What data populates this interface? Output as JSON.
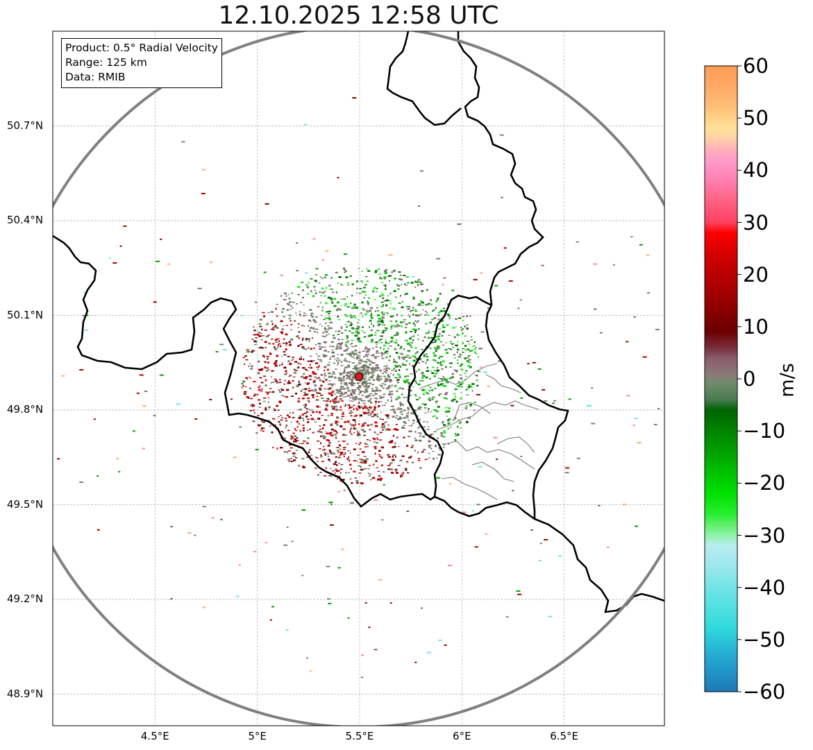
{
  "title": "12.10.2025 12:58 UTC",
  "info": {
    "product": "Product: 0.5° Radial Velocity",
    "range": "Range: 125 km",
    "data": "Data: RMIB"
  },
  "map": {
    "lon_range": [
      4.0,
      6.99
    ],
    "lat_range": [
      48.8,
      51.0
    ],
    "lat_ticks": [
      "50.7°N",
      "50.4°N",
      "50.1°N",
      "49.8°N",
      "49.5°N",
      "49.2°N",
      "48.9°N"
    ],
    "lat_values": [
      50.7,
      50.4,
      50.1,
      49.8,
      49.5,
      49.2,
      48.9
    ],
    "lon_ticks": [
      "4.5°E",
      "5°E",
      "5.5°E",
      "6°E",
      "6.5°E"
    ],
    "lon_values": [
      4.5,
      5.0,
      5.5,
      6.0,
      6.5
    ],
    "radar_site": {
      "lon": 5.505,
      "lat": 49.914,
      "range_km": 125,
      "marker_color": "#e8141a"
    }
  },
  "colorbar": {
    "unit": "m/s",
    "min": -60,
    "max": 60,
    "ticks": [
      "60",
      "50",
      "40",
      "30",
      "20",
      "10",
      "0",
      "−10",
      "−20",
      "−30",
      "−40",
      "−50",
      "−60"
    ],
    "tick_values": [
      60,
      50,
      40,
      30,
      20,
      10,
      0,
      -10,
      -20,
      -30,
      -40,
      -50,
      -60
    ],
    "stops": [
      {
        "v": -60,
        "c": "#1f78b4"
      },
      {
        "v": -56,
        "c": "#2196c8"
      },
      {
        "v": -52,
        "c": "#26b4d4"
      },
      {
        "v": -48,
        "c": "#2ed8dc"
      },
      {
        "v": -44,
        "c": "#50dfe0"
      },
      {
        "v": -40,
        "c": "#72e4e6"
      },
      {
        "v": -36,
        "c": "#9ae8ec"
      },
      {
        "v": -32,
        "c": "#b8ecf0"
      },
      {
        "v": -30,
        "c": "#8ff2a8"
      },
      {
        "v": -28,
        "c": "#60ef6a"
      },
      {
        "v": -26,
        "c": "#28ef30"
      },
      {
        "v": -22,
        "c": "#00e000"
      },
      {
        "v": -18,
        "c": "#00c200"
      },
      {
        "v": -14,
        "c": "#00a000"
      },
      {
        "v": -10,
        "c": "#008400"
      },
      {
        "v": -6,
        "c": "#006400"
      },
      {
        "v": -4,
        "c": "#4a7a50"
      },
      {
        "v": -1,
        "c": "#6e8c6a"
      },
      {
        "v": 1,
        "c": "#8c7878"
      },
      {
        "v": 4,
        "c": "#8a5c6c"
      },
      {
        "v": 6,
        "c": "#7a2e3c"
      },
      {
        "v": 9,
        "c": "#6c0000"
      },
      {
        "v": 13,
        "c": "#880000"
      },
      {
        "v": 17,
        "c": "#a80000"
      },
      {
        "v": 21,
        "c": "#c00000"
      },
      {
        "v": 25,
        "c": "#de0000"
      },
      {
        "v": 28,
        "c": "#ff0000"
      },
      {
        "v": 30,
        "c": "#ff4060"
      },
      {
        "v": 34,
        "c": "#ff6080"
      },
      {
        "v": 38,
        "c": "#ff80b0"
      },
      {
        "v": 42,
        "c": "#ff9ccc"
      },
      {
        "v": 44,
        "c": "#ffb0b8"
      },
      {
        "v": 46,
        "c": "#ffd0a8"
      },
      {
        "v": 48,
        "c": "#ffe098"
      },
      {
        "v": 52,
        "c": "#ffc078"
      },
      {
        "v": 56,
        "c": "#ffaa66"
      },
      {
        "v": 60,
        "c": "#ff9c55"
      }
    ]
  }
}
